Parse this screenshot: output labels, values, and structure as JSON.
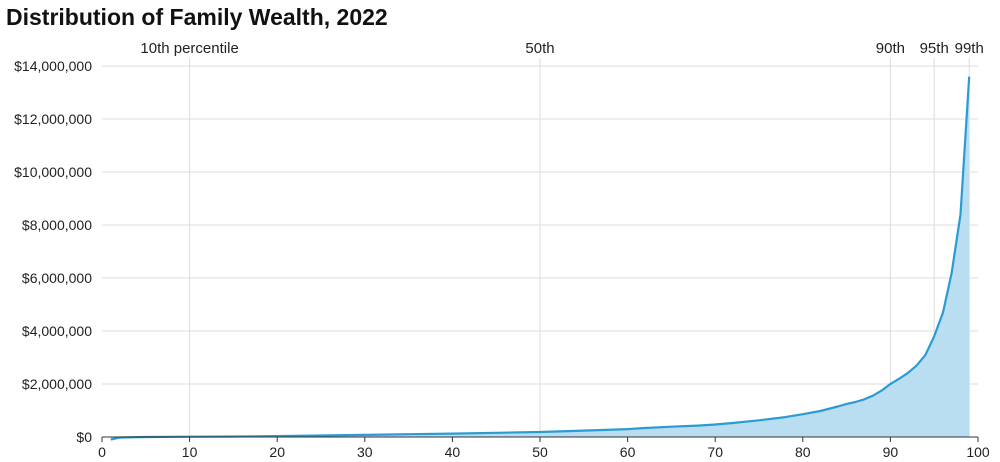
{
  "chart_data": {
    "type": "area",
    "title": "Distribution of Family Wealth, 2022",
    "xlabel": "",
    "ylabel": "",
    "xlim": [
      0,
      100
    ],
    "ylim": [
      0,
      14000000
    ],
    "x_ticks": [
      "0",
      "10",
      "20",
      "30",
      "40",
      "50",
      "60",
      "70",
      "80",
      "90",
      "100"
    ],
    "y_ticks": [
      "$0",
      "$2,000,000",
      "$4,000,000",
      "$6,000,000",
      "$8,000,000",
      "$10,000,000",
      "$12,000,000",
      "$14,000,000"
    ],
    "y_tick_values": [
      0,
      2000000,
      4000000,
      6000000,
      8000000,
      10000000,
      12000000,
      14000000
    ],
    "reference_lines": [
      {
        "x": 10,
        "label": "10th percentile"
      },
      {
        "x": 50,
        "label": "50th"
      },
      {
        "x": 90,
        "label": "90th"
      },
      {
        "x": 95,
        "label": "95th"
      },
      {
        "x": 99,
        "label": "99th"
      }
    ],
    "grid": true,
    "legend": "none",
    "colors": {
      "line": "#2b9bd3",
      "fill": "#b9def2",
      "grid": "#dddddd",
      "axis": "#333333"
    },
    "series": [
      {
        "x": [
          1,
          2,
          5,
          10,
          15,
          20,
          25,
          30,
          35,
          40,
          45,
          50,
          55,
          60,
          62,
          65,
          68,
          70,
          72,
          75,
          78,
          80,
          82,
          84,
          85,
          86,
          87,
          88,
          89,
          90,
          91,
          92,
          93,
          94,
          95,
          96,
          97,
          98,
          99
        ],
        "values": [
          -100000,
          -20000,
          0,
          10000,
          20000,
          35000,
          55000,
          80000,
          105000,
          130000,
          160000,
          190000,
          240000,
          300000,
          340000,
          390000,
          430000,
          470000,
          530000,
          630000,
          750000,
          860000,
          980000,
          1150000,
          1250000,
          1320000,
          1420000,
          1560000,
          1750000,
          2000000,
          2200000,
          2420000,
          2700000,
          3100000,
          3800000,
          4700000,
          6200000,
          8400000,
          13600000
        ]
      }
    ]
  }
}
